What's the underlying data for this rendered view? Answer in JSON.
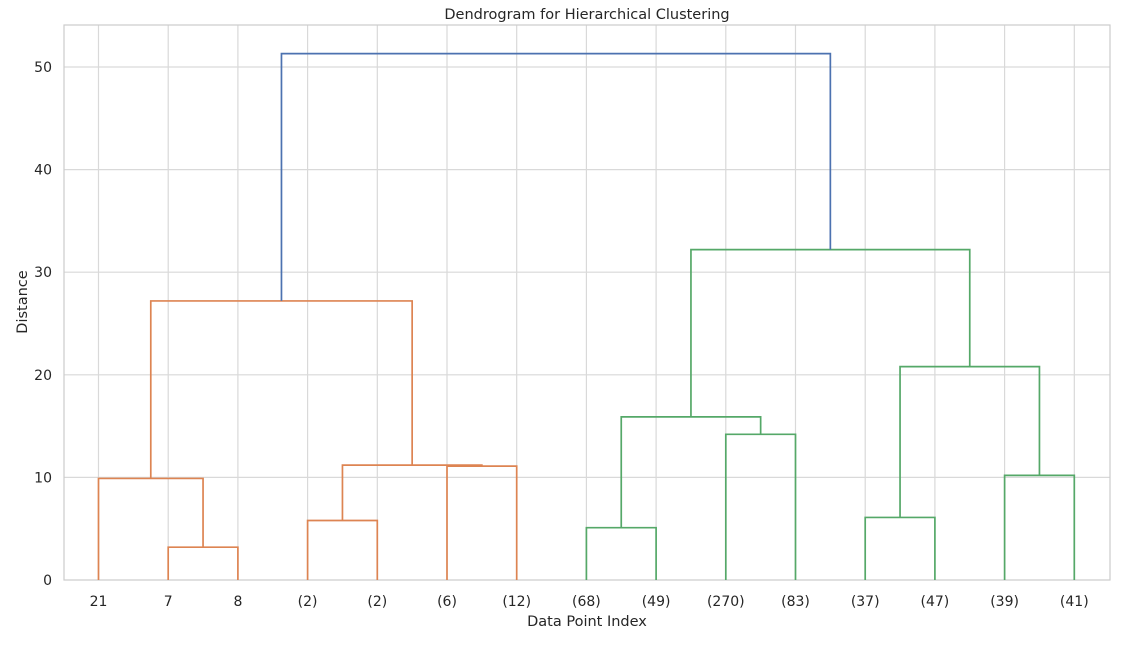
{
  "chart_data": {
    "type": "dendrogram",
    "title": "Dendrogram for Hierarchical Clustering",
    "xlabel": "Data Point Index",
    "ylabel": "Distance",
    "ylim": [
      0,
      54
    ],
    "yticks": [
      0,
      10,
      20,
      30,
      40,
      50
    ],
    "grid": true,
    "leaf_labels": [
      "21",
      "7",
      "8",
      "(2)",
      "(2)",
      "(6)",
      "(12)",
      "(68)",
      "(49)",
      "(270)",
      "(83)",
      "(37)",
      "(47)",
      "(39)",
      "(41)"
    ],
    "colors": {
      "cluster_1": "#dd8452",
      "cluster_2": "#55a868",
      "root": "#4c72b0"
    },
    "links": [
      {
        "left": 1,
        "right": 2,
        "height": 3.2,
        "color": "cluster_1"
      },
      {
        "left": 0,
        "right": 1.5,
        "height": 9.9,
        "color": "cluster_1"
      },
      {
        "left": 3,
        "right": 4,
        "height": 5.8,
        "color": "cluster_1"
      },
      {
        "left": 5,
        "right": 6,
        "height": 11.1,
        "color": "cluster_1"
      },
      {
        "left": 3.5,
        "right": 5.5,
        "height": 11.2,
        "color": "cluster_1"
      },
      {
        "left": 0.75,
        "right": 4.5,
        "height": 27.2,
        "color": "cluster_1"
      },
      {
        "left": 7,
        "right": 8,
        "height": 5.1,
        "color": "cluster_2"
      },
      {
        "left": 9,
        "right": 10,
        "height": 14.2,
        "color": "cluster_2"
      },
      {
        "left": 7.5,
        "right": 9.5,
        "height": 15.9,
        "color": "cluster_2"
      },
      {
        "left": 11,
        "right": 12,
        "height": 6.1,
        "color": "cluster_2"
      },
      {
        "left": 13,
        "right": 14,
        "height": 10.2,
        "color": "cluster_2"
      },
      {
        "left": 11.5,
        "right": 13.5,
        "height": 20.8,
        "color": "cluster_2"
      },
      {
        "left": 8.5,
        "right": 12.5,
        "height": 32.2,
        "color": "cluster_2"
      },
      {
        "left": 2.625,
        "right": 10.5,
        "height": 51.3,
        "color": "root"
      }
    ]
  }
}
